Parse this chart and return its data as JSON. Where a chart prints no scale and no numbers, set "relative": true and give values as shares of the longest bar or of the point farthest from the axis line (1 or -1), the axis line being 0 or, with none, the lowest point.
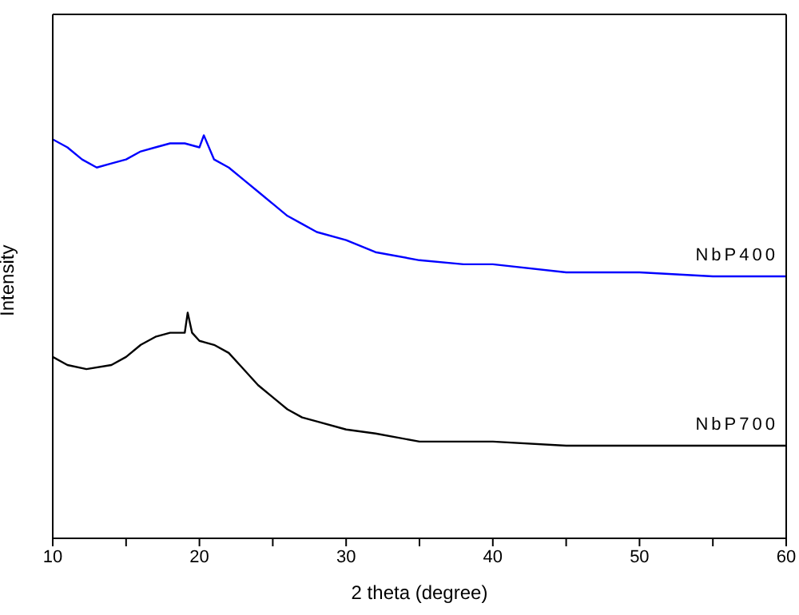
{
  "chart_data": {
    "type": "line",
    "xlabel": "2 theta (degree)",
    "ylabel": "Intensity",
    "relative": true,
    "marker": "none",
    "line_style": "solid",
    "xlim": [
      10,
      60
    ],
    "xticks": [
      10,
      {
        "value": 15,
        "label": null
      },
      20,
      {
        "value": 25,
        "label": null
      },
      30,
      {
        "value": 35,
        "label": null
      },
      40,
      {
        "value": 45,
        "label": null
      },
      50,
      {
        "value": 55,
        "label": null
      },
      60
    ],
    "series": [
      {
        "name": "NbP400",
        "color": "#0000ff",
        "x": [
          10,
          11,
          12,
          13,
          14,
          15,
          16,
          17,
          18,
          19,
          20,
          20.3,
          21,
          22,
          23,
          24,
          25,
          26,
          27,
          28,
          30,
          32,
          35,
          38,
          40,
          45,
          50,
          55,
          60
        ],
        "values": [
          0.99,
          0.97,
          0.94,
          0.92,
          0.93,
          0.94,
          0.96,
          0.97,
          0.98,
          0.98,
          0.97,
          1.0,
          0.94,
          0.92,
          0.89,
          0.86,
          0.83,
          0.8,
          0.78,
          0.76,
          0.74,
          0.71,
          0.69,
          0.68,
          0.68,
          0.66,
          0.66,
          0.65,
          0.65
        ]
      },
      {
        "name": "NbP700",
        "color": "#000000",
        "x": [
          10,
          11,
          12.3,
          14,
          15,
          16,
          17,
          18,
          19,
          19.2,
          19.5,
          20,
          21,
          22,
          23,
          24,
          25,
          26,
          27,
          28,
          30,
          32,
          35,
          40,
          45,
          60
        ],
        "values": [
          0.45,
          0.43,
          0.42,
          0.43,
          0.45,
          0.48,
          0.5,
          0.51,
          0.51,
          0.56,
          0.51,
          0.49,
          0.48,
          0.46,
          0.42,
          0.38,
          0.35,
          0.32,
          0.3,
          0.29,
          0.27,
          0.26,
          0.24,
          0.24,
          0.23,
          0.23
        ]
      }
    ]
  }
}
